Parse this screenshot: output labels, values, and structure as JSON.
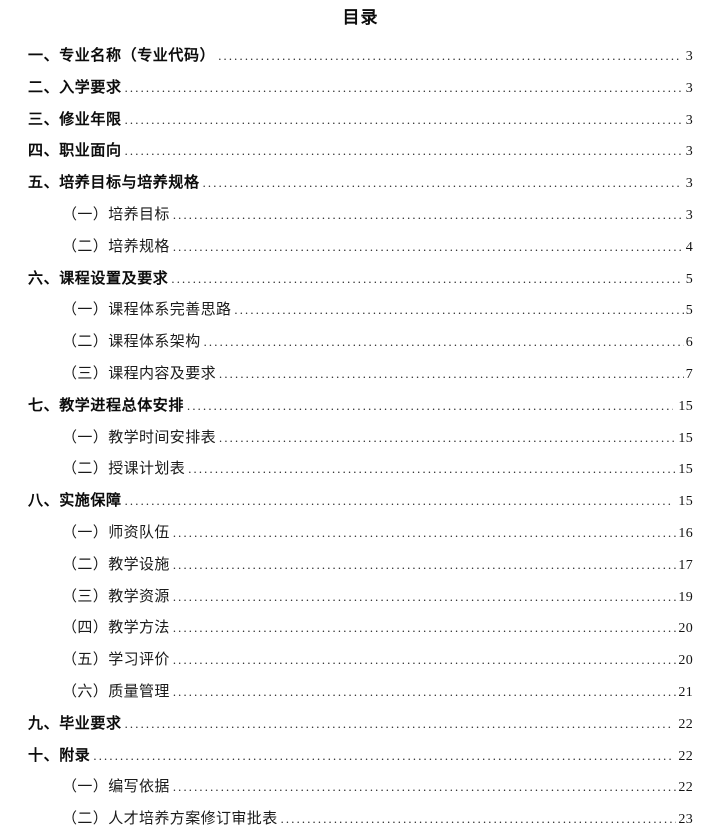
{
  "page": {
    "title": "目录"
  },
  "toc": {
    "entries": [
      {
        "level": 1,
        "label": "一、专业名称（专业代码）",
        "page": "3"
      },
      {
        "level": 1,
        "label": "二、入学要求",
        "page": "3"
      },
      {
        "level": 1,
        "label": "三、修业年限",
        "page": "3"
      },
      {
        "level": 1,
        "label": "四、职业面向",
        "page": "3"
      },
      {
        "level": 1,
        "label": "五、培养目标与培养规格",
        "page": "3"
      },
      {
        "level": 2,
        "label": "（一）培养目标",
        "page": "3"
      },
      {
        "level": 2,
        "label": "（二）培养规格",
        "page": "4"
      },
      {
        "level": 1,
        "label": "六、课程设置及要求",
        "page": "5"
      },
      {
        "level": 2,
        "label": "（一）课程体系完善思路",
        "page": "5"
      },
      {
        "level": 2,
        "label": "（二）课程体系架构",
        "page": "6"
      },
      {
        "level": 2,
        "label": "（三）课程内容及要求",
        "page": "7"
      },
      {
        "level": 1,
        "label": "七、教学进程总体安排",
        "page": "15"
      },
      {
        "level": 2,
        "label": "（一）教学时间安排表",
        "page": "15"
      },
      {
        "level": 2,
        "label": "（二）授课计划表",
        "page": "15"
      },
      {
        "level": 1,
        "label": "八、实施保障",
        "page": "15"
      },
      {
        "level": 2,
        "label": "（一）师资队伍",
        "page": "16"
      },
      {
        "level": 2,
        "label": "（二）教学设施",
        "page": "17"
      },
      {
        "level": 2,
        "label": "（三）教学资源",
        "page": "19"
      },
      {
        "level": 2,
        "label": "（四）教学方法",
        "page": "20"
      },
      {
        "level": 2,
        "label": "（五）学习评价",
        "page": "20"
      },
      {
        "level": 2,
        "label": "（六）质量管理",
        "page": "21"
      },
      {
        "level": 1,
        "label": "九、毕业要求",
        "page": "22"
      },
      {
        "level": 1,
        "label": "十、附录",
        "page": "22"
      },
      {
        "level": 2,
        "label": "（一）编写依据",
        "page": "22"
      },
      {
        "level": 2,
        "label": "（二）人才培养方案修订审批表",
        "page": "23"
      }
    ]
  }
}
